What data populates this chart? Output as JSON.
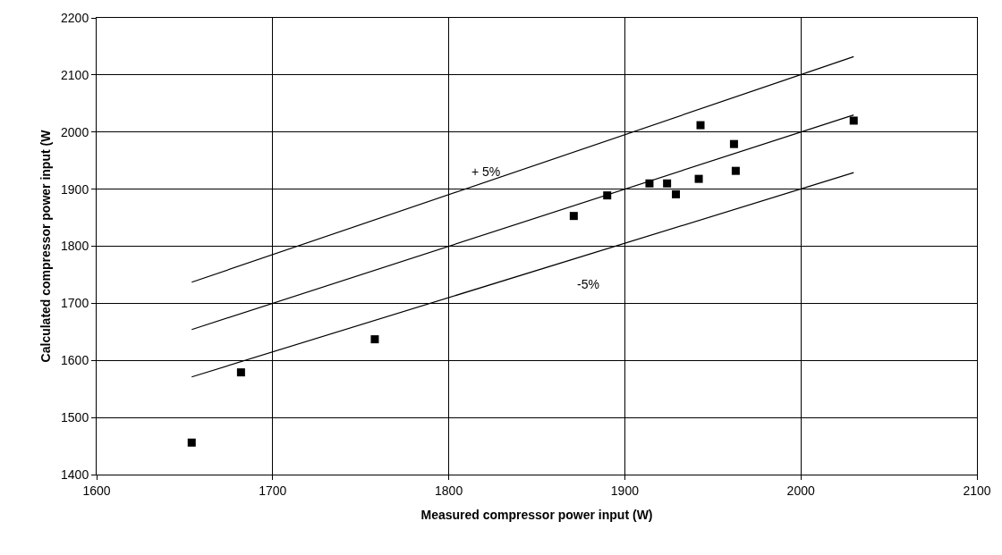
{
  "chart_data": {
    "type": "scatter",
    "xlabel": "Measured compressor power input (W)",
    "ylabel": "Calculated compressor power input (W",
    "series": [
      {
        "color": "#000000",
        "marker": "square",
        "x": [
          1654,
          1682,
          1758,
          1871,
          1890,
          1914,
          1924,
          1929,
          1942,
          1943,
          1962,
          1963,
          2030
        ],
        "values": [
          1456,
          1579,
          1637,
          1853,
          1889,
          1910,
          1910,
          1891,
          1918,
          2012,
          1979,
          1932,
          2020
        ]
      },
      {
        "type": "line",
        "color": "#000000",
        "marker": "none",
        "line_style": "solid",
        "x": [
          1654,
          2030
        ],
        "values": [
          1737,
          2132
        ]
      },
      {
        "type": "line",
        "color": "#000000",
        "marker": "none",
        "line_style": "solid",
        "x": [
          1654,
          2030
        ],
        "values": [
          1654,
          2030
        ]
      },
      {
        "type": "line",
        "color": "#000000",
        "marker": "none",
        "line_style": "solid",
        "x": [
          1654,
          2030
        ],
        "values": [
          1571,
          1929
        ]
      }
    ],
    "annotations": [
      "+ 5%",
      "-5%"
    ],
    "xlim": [
      1600,
      2100
    ],
    "xticks": [
      1600,
      1700,
      1800,
      1900,
      2000,
      2100
    ],
    "ylim": [
      1400,
      2200
    ],
    "yticks": [
      1400,
      1500,
      1600,
      1700,
      1800,
      1900,
      2000,
      2100,
      2200
    ],
    "grid": true
  }
}
